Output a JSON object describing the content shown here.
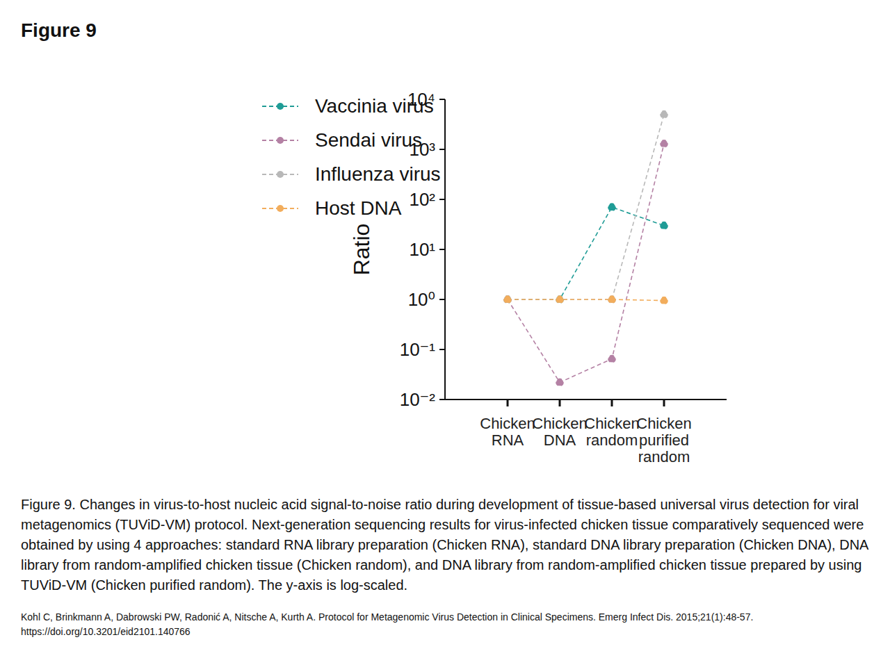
{
  "figure_label": "Figure 9",
  "caption": "Figure 9. Changes in virus-to-host nucleic acid signal-to-noise ratio during development of tissue-based universal virus detection for viral metagenomics (TUViD-VM) protocol. Next-generation sequencing results for virus-infected chicken tissue comparatively sequenced were obtained by using 4 approaches: standard RNA library preparation (Chicken RNA), standard DNA library preparation (Chicken DNA), DNA library from random-amplified chicken tissue (Chicken random), and DNA library from random-amplified chicken tissue prepared by using TUViD-VM (Chicken purified random). The y-axis is log-scaled.",
  "citation": "Kohl C, Brinkmann A, Dabrowski PW, Radonić A, Nitsche A, Kurth A. Protocol for Metagenomic Virus Detection in Clinical Specimens. Emerg Infect Dis. 2015;21(1):48-57. https://doi.org/10.3201/eid2101.140766",
  "chart_data": {
    "type": "line",
    "y_label": "Ratio",
    "categories": [
      "Chicken RNA",
      "Chicken DNA",
      "Chicken random",
      "Chicken purified random"
    ],
    "series": [
      {
        "name": "Vaccinia virus",
        "color": "#1f9c96",
        "values": [
          1,
          1,
          70,
          30
        ]
      },
      {
        "name": "Sendai virus",
        "color": "#b481a4",
        "values": [
          1,
          0.022,
          0.065,
          1300
        ]
      },
      {
        "name": "Influenza virus",
        "color": "#b8b8b8",
        "values": [
          1,
          1,
          1,
          5000
        ]
      },
      {
        "name": "Host DNA",
        "color": "#f2ad5c",
        "values": [
          1,
          1,
          1,
          0.95
        ]
      }
    ],
    "log": "y",
    "ylim": [
      0.01,
      10000
    ],
    "yticks": [
      {
        "value": 0.01,
        "label": "10⁻²"
      },
      {
        "value": 0.1,
        "label": "10⁻¹"
      },
      {
        "value": 1,
        "label": "10⁰"
      },
      {
        "value": 10,
        "label": "10¹"
      },
      {
        "value": 100,
        "label": "10²"
      },
      {
        "value": 1000,
        "label": "10³"
      },
      {
        "value": 10000,
        "label": "10⁴"
      }
    ],
    "grid": false,
    "legend": "upper left",
    "line_style": "dashed",
    "marker": "circle"
  }
}
